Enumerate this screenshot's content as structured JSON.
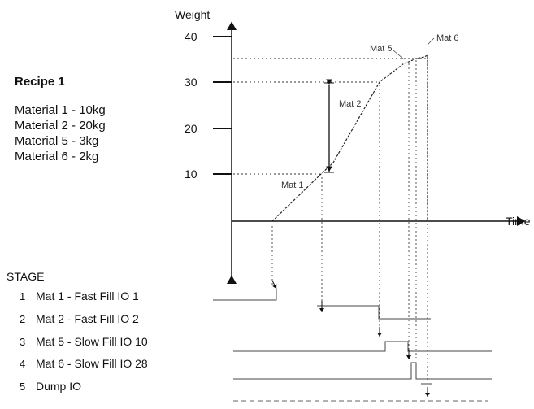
{
  "recipe": {
    "title": "Recipe 1",
    "lines": [
      "Material 1 - 10kg",
      "Material 2 - 20kg",
      "Material 5 -  3kg",
      "Material 6 -  2kg"
    ]
  },
  "axes": {
    "y_label": "Weight",
    "x_label": "Time",
    "y_ticks": [
      "40",
      "30",
      "20",
      "10"
    ]
  },
  "annotations": {
    "mat1": "Mat 1",
    "mat2": "Mat 2",
    "mat5": "Mat 5",
    "mat6": "Mat 6"
  },
  "stages": {
    "header": "STAGE",
    "items": [
      {
        "num": "1",
        "label": "Mat 1 - Fast Fill IO 1"
      },
      {
        "num": "2",
        "label": "Mat 2 - Fast Fill IO 2"
      },
      {
        "num": "3",
        "label": "Mat 5 - Slow Fill IO 10"
      },
      {
        "num": "4",
        "label": "Mat 6 - Slow Fill IO 28"
      },
      {
        "num": "5",
        "label": "Dump IO"
      }
    ]
  }
}
